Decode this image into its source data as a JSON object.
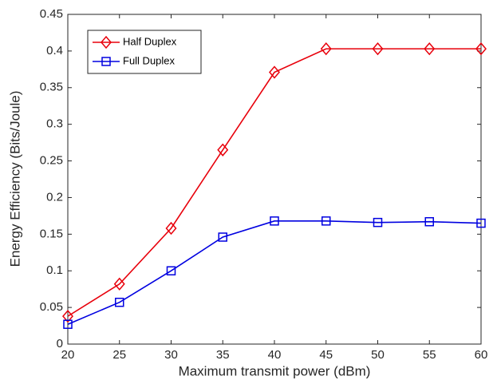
{
  "chart_data": {
    "type": "line",
    "xlabel": "Maximum transmit power (dBm)",
    "ylabel": "Energy Efficiency (Bits/Joule)",
    "x": [
      20,
      25,
      30,
      35,
      40,
      45,
      50,
      55,
      60
    ],
    "series": [
      {
        "name": "Half Duplex",
        "color": "#e8000b",
        "marker": "diamond",
        "values": [
          0.038,
          0.082,
          0.158,
          0.265,
          0.371,
          0.403,
          0.403,
          0.403,
          0.403
        ]
      },
      {
        "name": "Full Duplex",
        "color": "#0000e0",
        "marker": "square",
        "values": [
          0.027,
          0.057,
          0.1,
          0.146,
          0.168,
          0.168,
          0.166,
          0.167,
          0.165
        ]
      }
    ],
    "xlim": [
      20,
      60
    ],
    "xticks": [
      20,
      25,
      30,
      35,
      40,
      45,
      50,
      55,
      60
    ],
    "ylim": [
      0,
      0.45
    ],
    "yticks": [
      0,
      0.05,
      0.1,
      0.15,
      0.2,
      0.25,
      0.3,
      0.35,
      0.4,
      0.45
    ],
    "grid": false,
    "legend": "upper left"
  }
}
